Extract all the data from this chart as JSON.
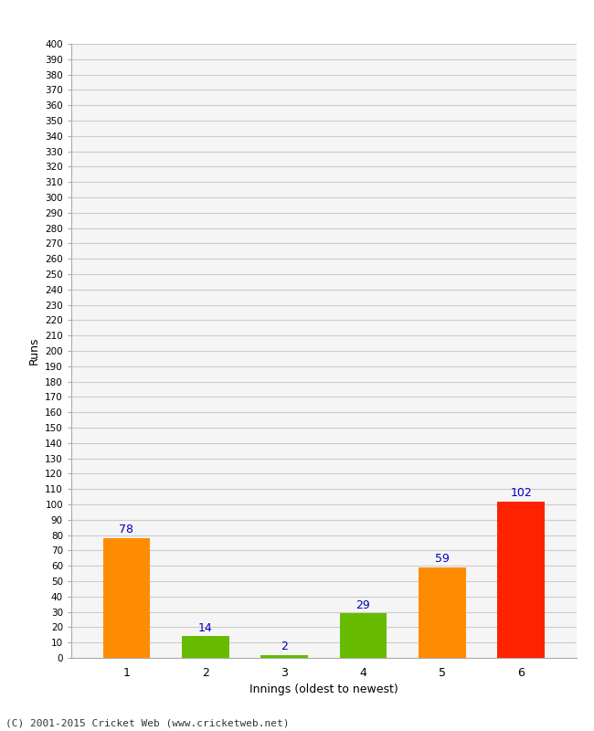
{
  "xlabel": "Innings (oldest to newest)",
  "ylabel": "Runs",
  "categories": [
    "1",
    "2",
    "3",
    "4",
    "5",
    "6"
  ],
  "values": [
    78,
    14,
    2,
    29,
    59,
    102
  ],
  "bar_colors": [
    "#ff8c00",
    "#66bb00",
    "#66bb00",
    "#66bb00",
    "#ff8c00",
    "#ff2200"
  ],
  "ylim": [
    0,
    400
  ],
  "label_color": "#0000bb",
  "background_color": "#ffffff",
  "plot_bg_color": "#f5f5f5",
  "grid_color": "#cccccc",
  "footer": "(C) 2001-2015 Cricket Web (www.cricketweb.net)"
}
